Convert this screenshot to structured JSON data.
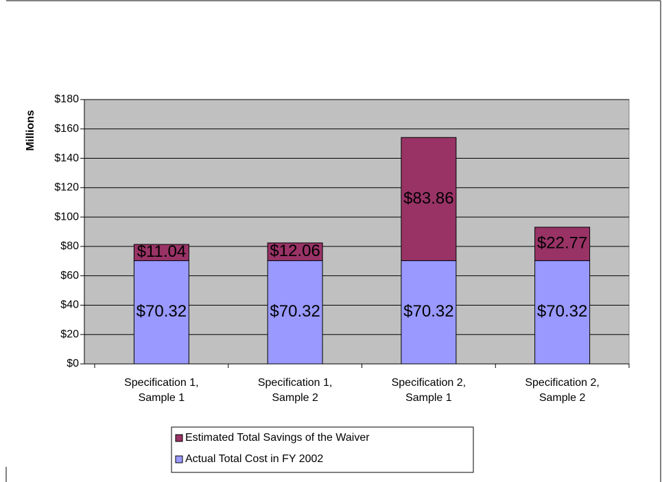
{
  "chart_data": {
    "type": "stacked_bar",
    "y_label": "Millions",
    "categories": [
      [
        "Specification 1,",
        "Sample 1"
      ],
      [
        "Specification 1,",
        "Sample 2"
      ],
      [
        "Specification 2,",
        "Sample 1"
      ],
      [
        "Specification 2,",
        "Sample 2"
      ]
    ],
    "series": [
      {
        "name": "Actual Total Cost in FY 2002",
        "color": "#9999ff",
        "values": [
          70.32,
          70.32,
          70.32,
          70.32
        ],
        "value_labels": [
          "$70.32",
          "$70.32",
          "$70.32",
          "$70.32"
        ]
      },
      {
        "name": "Estimated Total Savings of the Waiver",
        "color": "#993366",
        "values": [
          11.04,
          12.06,
          83.86,
          22.77
        ],
        "value_labels": [
          "$11.04",
          "$12.06",
          "$83.86",
          "$22.77"
        ]
      }
    ],
    "ylim": [
      0,
      180
    ],
    "yticks": [
      {
        "value": 0,
        "label": "$0"
      },
      {
        "value": 20,
        "label": "$20"
      },
      {
        "value": 40,
        "label": "$40"
      },
      {
        "value": 60,
        "label": "$60"
      },
      {
        "value": 80,
        "label": "$80"
      },
      {
        "value": 100,
        "label": "$100"
      },
      {
        "value": 120,
        "label": "$120"
      },
      {
        "value": 140,
        "label": "$140"
      },
      {
        "value": 160,
        "label": "$160"
      },
      {
        "value": 180,
        "label": "$180"
      }
    ],
    "grid": true,
    "plot_background": "#c0c0c0"
  }
}
